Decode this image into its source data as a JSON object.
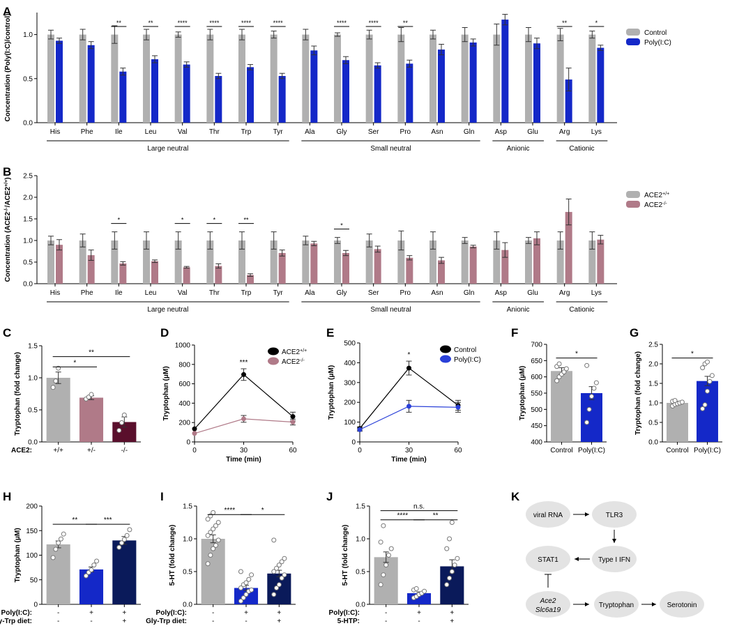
{
  "colors": {
    "gray": "#b0b0b0",
    "blue": "#1428c8",
    "pink": "#b07a88",
    "maroon": "#5a0f2c",
    "navy": "#0a1a5a",
    "ko_line": "#b07a88",
    "pic_line": "#2a40d8",
    "node_fill": "#e3e3e3"
  },
  "chart_data": [
    {
      "panel": "A",
      "type": "bar",
      "ylabel": "Concentration (Poly(I:C)/control)",
      "ylim": [
        0,
        1.25
      ],
      "yticks": [
        "0.0",
        "0.5",
        "1.0"
      ],
      "categories": [
        "His",
        "Phe",
        "Ile",
        "Leu",
        "Val",
        "Thr",
        "Trp",
        "Tyr",
        "Ala",
        "Gly",
        "Ser",
        "Pro",
        "Asn",
        "Gln",
        "Asp",
        "Glu",
        "Arg",
        "Lys"
      ],
      "series": [
        {
          "name": "Control",
          "values": [
            1,
            1,
            1,
            1,
            1,
            1,
            1,
            1,
            1,
            1,
            1,
            1,
            1,
            1,
            1,
            1,
            1,
            1
          ],
          "err": [
            0.05,
            0.06,
            0.1,
            0.06,
            0.03,
            0.06,
            0.06,
            0.04,
            0.06,
            0.02,
            0.05,
            0.08,
            0.05,
            0.08,
            0.12,
            0.08,
            0.07,
            0.04
          ]
        },
        {
          "name": "Poly(I:C)",
          "values": [
            0.93,
            0.88,
            0.58,
            0.72,
            0.66,
            0.53,
            0.63,
            0.53,
            0.82,
            0.71,
            0.65,
            0.67,
            0.83,
            0.91,
            1.17,
            0.9,
            0.49,
            0.85
          ],
          "err": [
            0.03,
            0.04,
            0.04,
            0.04,
            0.03,
            0.03,
            0.03,
            0.03,
            0.05,
            0.04,
            0.03,
            0.04,
            0.06,
            0.04,
            0.06,
            0.06,
            0.13,
            0.03
          ]
        }
      ],
      "sig": [
        {
          "i": 2,
          "t": "**"
        },
        {
          "i": 3,
          "t": "**"
        },
        {
          "i": 4,
          "t": "****"
        },
        {
          "i": 5,
          "t": "****"
        },
        {
          "i": 6,
          "t": "****"
        },
        {
          "i": 7,
          "t": "****"
        },
        {
          "i": 9,
          "t": "****"
        },
        {
          "i": 10,
          "t": "****"
        },
        {
          "i": 11,
          "t": "**"
        },
        {
          "i": 16,
          "t": "**"
        },
        {
          "i": 17,
          "t": "*"
        }
      ],
      "groups": [
        {
          "label": "Large neutral",
          "from": 0,
          "to": 7
        },
        {
          "label": "Small neutral",
          "from": 8,
          "to": 13
        },
        {
          "label": "Anionic",
          "from": 14,
          "to": 15
        },
        {
          "label": "Cationic",
          "from": 16,
          "to": 17
        }
      ],
      "legend": "right"
    },
    {
      "panel": "B",
      "type": "bar",
      "ylabel": "Concentration (ACE2-/-/ACE2+/+)",
      "ylim": [
        0,
        2.5
      ],
      "yticks": [
        "0.0",
        "0.5",
        "1.0",
        "1.5",
        "2.0",
        "2.5"
      ],
      "categories": [
        "His",
        "Phe",
        "Ile",
        "Leu",
        "Val",
        "Thr",
        "Trp",
        "Tyr",
        "Ala",
        "Gly",
        "Ser",
        "Pro",
        "Asn",
        "Gln",
        "Asp",
        "Glu",
        "Arg",
        "Lys"
      ],
      "series": [
        {
          "name": "ACE2+/+",
          "values": [
            1,
            1,
            1,
            1,
            1,
            1,
            1,
            1,
            1,
            1,
            1,
            1,
            1,
            1,
            1,
            1,
            1,
            1
          ],
          "err": [
            0.1,
            0.15,
            0.2,
            0.2,
            0.2,
            0.2,
            0.2,
            0.2,
            0.1,
            0.07,
            0.15,
            0.22,
            0.2,
            0.07,
            0.2,
            0.07,
            0.2,
            0.2
          ]
        },
        {
          "name": "ACE2-/-",
          "values": [
            0.9,
            0.66,
            0.47,
            0.52,
            0.38,
            0.41,
            0.2,
            0.71,
            0.93,
            0.71,
            0.8,
            0.6,
            0.54,
            0.86,
            0.78,
            1.05,
            1.66,
            1.02
          ],
          "err": [
            0.12,
            0.12,
            0.04,
            0.03,
            0.02,
            0.05,
            0.03,
            0.07,
            0.05,
            0.06,
            0.07,
            0.05,
            0.07,
            0.03,
            0.17,
            0.15,
            0.3,
            0.1
          ]
        }
      ],
      "sig": [
        {
          "i": 2,
          "t": "*"
        },
        {
          "i": 4,
          "t": "*"
        },
        {
          "i": 5,
          "t": "*"
        },
        {
          "i": 6,
          "t": "**"
        },
        {
          "i": 9,
          "t": "*"
        }
      ],
      "groups": [
        {
          "label": "Large neutral",
          "from": 0,
          "to": 7
        },
        {
          "label": "Small neutral",
          "from": 8,
          "to": 13
        },
        {
          "label": "Anionic",
          "from": 14,
          "to": 15
        },
        {
          "label": "Cationic",
          "from": 16,
          "to": 17
        }
      ],
      "legend": "right"
    },
    {
      "panel": "C",
      "type": "bar",
      "ylabel": "Tryptophan (fold change)",
      "ylim": [
        0,
        1.5
      ],
      "yticks": [
        "0.0",
        "0.5",
        "1.0",
        "1.5"
      ],
      "row_labels": [
        "ACE2:"
      ],
      "categories": [
        "+/+",
        "+/-",
        "-/-"
      ],
      "values": [
        1.0,
        0.69,
        0.31
      ],
      "err": [
        0.09,
        0.03,
        0.08
      ],
      "points": [
        [
          0.85,
          0.95,
          1.15
        ],
        [
          0.67,
          0.7,
          0.74
        ],
        [
          0.18,
          0.3,
          0.42
        ]
      ],
      "sig": [
        {
          "a": 0,
          "b": 1,
          "t": "*",
          "level": 1.17
        },
        {
          "a": 0,
          "b": 2,
          "t": "**",
          "level": 1.33
        }
      ]
    },
    {
      "panel": "D",
      "type": "line",
      "xlabel": "Time (min)",
      "ylabel": "Tryptophan (μM)",
      "xlim": [
        0,
        60
      ],
      "ylim": [
        0,
        1000
      ],
      "xticks": [
        "0",
        "30",
        "60"
      ],
      "yticks": [
        "0",
        "200",
        "400",
        "600",
        "800",
        "1000"
      ],
      "x": [
        0,
        30,
        60
      ],
      "series": [
        {
          "name": "ACE2+/+",
          "values": [
            135,
            695,
            262
          ],
          "err": [
            0,
            60,
            45
          ]
        },
        {
          "name": "ACE2-/-",
          "values": [
            88,
            238,
            205
          ],
          "err": [
            0,
            35,
            30
          ]
        }
      ],
      "annotation": {
        "x": 30,
        "text": "***"
      },
      "legend": "top-right"
    },
    {
      "panel": "E",
      "type": "line",
      "xlabel": "Time (min)",
      "ylabel": "Tryptophan (μM)",
      "xlim": [
        0,
        60
      ],
      "ylim": [
        0,
        500
      ],
      "xticks": [
        "0",
        "30",
        "60"
      ],
      "yticks": [
        "0",
        "100",
        "200",
        "300",
        "400",
        "500"
      ],
      "x": [
        0,
        30,
        60
      ],
      "series": [
        {
          "name": "Control",
          "values": [
            68,
            373,
            185
          ],
          "err": [
            8,
            35,
            25
          ]
        },
        {
          "name": "Poly(I:C)",
          "values": [
            62,
            180,
            175
          ],
          "err": [
            8,
            30,
            25
          ]
        }
      ],
      "annotation": {
        "x": 30,
        "text": "*"
      },
      "legend": "top-right"
    },
    {
      "panel": "F",
      "type": "bar",
      "ylabel": "Tryptophan (μM)",
      "ylim": [
        400,
        700
      ],
      "yticks": [
        "400",
        "450",
        "500",
        "550",
        "600",
        "650",
        "700"
      ],
      "categories": [
        "Control",
        "Poly(I:C)"
      ],
      "values": [
        618,
        550
      ],
      "err": [
        10,
        20
      ],
      "points": [
        [
          588,
          600,
          608,
          615,
          625,
          632,
          640
        ],
        [
          460,
          500,
          540,
          565,
          582,
          635
        ]
      ],
      "sig": [
        {
          "a": 0,
          "b": 1,
          "t": "*",
          "level": 658
        }
      ]
    },
    {
      "panel": "G",
      "type": "bar",
      "ylabel": "Tryptophan (fold change)",
      "ylim": [
        0,
        2.5
      ],
      "yticks": [
        "0.0",
        "0.5",
        "1.0",
        "1.5",
        "2.0",
        "2.5"
      ],
      "categories": [
        "Control",
        "Poly(I:C)"
      ],
      "values": [
        1.0,
        1.56
      ],
      "err": [
        0.04,
        0.12
      ],
      "points": [
        [
          0.92,
          0.96,
          0.98,
          1.0,
          1.02,
          1.04,
          1.06
        ],
        [
          0.85,
          0.95,
          1.3,
          1.55,
          1.7,
          1.9,
          2.0,
          2.05
        ]
      ],
      "sig": [
        {
          "a": 0,
          "b": 1,
          "t": "*",
          "level": 2.15
        }
      ]
    },
    {
      "panel": "H",
      "type": "bar",
      "ylabel": "Tryptophan (μM)",
      "ylim": [
        0,
        200
      ],
      "yticks": [
        "0",
        "50",
        "100",
        "150",
        "200"
      ],
      "row_labels": [
        "Poly(I:C):",
        "Gly-Trp diet:"
      ],
      "categories": [
        [
          "-",
          "-"
        ],
        [
          "+",
          "-"
        ],
        [
          "+",
          "+"
        ]
      ],
      "values": [
        122,
        71,
        130
      ],
      "err": [
        7,
        5,
        8
      ],
      "points": [
        [
          95,
          112,
          125,
          133,
          143
        ],
        [
          58,
          65,
          70,
          80,
          88
        ],
        [
          116,
          125,
          132,
          140,
          152
        ]
      ],
      "sig": [
        {
          "a": 0,
          "b": 1,
          "t": "**",
          "level": 163
        },
        {
          "a": 1,
          "b": 2,
          "t": "***",
          "level": 163
        }
      ]
    },
    {
      "panel": "I",
      "type": "bar",
      "ylabel": "5-HT (fold change)",
      "ylim": [
        0,
        1.5
      ],
      "yticks": [
        "0.0",
        "0.5",
        "1.0",
        "1.5"
      ],
      "row_labels": [
        "Poly(I:C):",
        "Gly-Trp diet:"
      ],
      "categories": [
        [
          "-",
          "-"
        ],
        [
          "+",
          "-"
        ],
        [
          "+",
          "+"
        ]
      ],
      "values": [
        1.0,
        0.25,
        0.47
      ],
      "err": [
        0.06,
        0.04,
        0.05
      ],
      "points": [
        [
          0.62,
          0.75,
          0.85,
          0.9,
          0.98,
          1.05,
          1.1,
          1.15,
          1.2,
          1.25,
          1.3,
          1.35,
          1.4
        ],
        [
          0.05,
          0.1,
          0.15,
          0.2,
          0.22,
          0.25,
          0.3,
          0.33,
          0.38,
          0.45,
          0.5
        ],
        [
          0.15,
          0.25,
          0.3,
          0.4,
          0.45,
          0.5,
          0.55,
          0.6,
          0.65,
          0.7,
          0.98
        ]
      ],
      "sig": [
        {
          "a": 0,
          "b": 1,
          "t": "****",
          "level": 1.37
        },
        {
          "a": 1,
          "b": 2,
          "t": "*",
          "level": 1.37
        }
      ]
    },
    {
      "panel": "J",
      "type": "bar",
      "ylabel": "5-HT (fold change)",
      "ylim": [
        0,
        1.5
      ],
      "yticks": [
        "0.0",
        "0.5",
        "1.0",
        "1.5"
      ],
      "row_labels": [
        "Poly(I:C):",
        "5-HTP:"
      ],
      "categories": [
        [
          "-",
          "-"
        ],
        [
          "+",
          "-"
        ],
        [
          "+",
          "+"
        ]
      ],
      "values": [
        0.72,
        0.17,
        0.58
      ],
      "err": [
        0.08,
        0.02,
        0.1
      ],
      "points": [
        [
          0.3,
          0.45,
          0.6,
          0.75,
          0.85,
          0.95,
          1.2
        ],
        [
          0.1,
          0.12,
          0.15,
          0.17,
          0.2,
          0.22,
          0.24
        ],
        [
          0.3,
          0.4,
          0.5,
          0.6,
          0.7,
          0.85,
          1.0,
          1.25
        ]
      ],
      "sig": [
        {
          "a": 0,
          "b": 1,
          "t": "****",
          "level": 1.29
        },
        {
          "a": 1,
          "b": 2,
          "t": "**",
          "level": 1.29
        },
        {
          "a": 0,
          "b": 2,
          "t": "n.s.",
          "level": 1.43
        }
      ]
    }
  ],
  "diagram": {
    "panel": "K",
    "nodes": [
      "viral RNA",
      "TLR3",
      "Type I IFN",
      "STAT1",
      "Ace2",
      "Slc6a19",
      "Tryptophan",
      "Serotonin"
    ]
  }
}
